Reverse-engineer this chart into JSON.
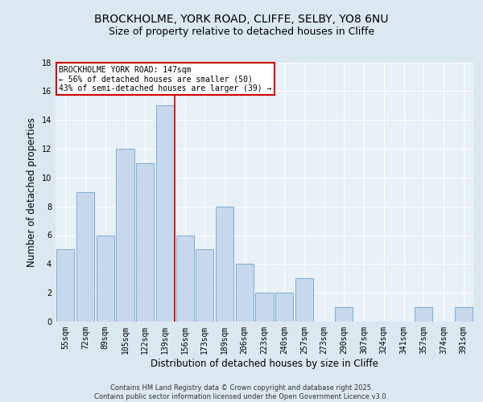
{
  "title1": "BROCKHOLME, YORK ROAD, CLIFFE, SELBY, YO8 6NU",
  "title2": "Size of property relative to detached houses in Cliffe",
  "xlabel": "Distribution of detached houses by size in Cliffe",
  "ylabel": "Number of detached properties",
  "categories": [
    "55sqm",
    "72sqm",
    "89sqm",
    "105sqm",
    "122sqm",
    "139sqm",
    "156sqm",
    "173sqm",
    "189sqm",
    "206sqm",
    "223sqm",
    "240sqm",
    "257sqm",
    "273sqm",
    "290sqm",
    "307sqm",
    "324sqm",
    "341sqm",
    "357sqm",
    "374sqm",
    "391sqm"
  ],
  "values": [
    5,
    9,
    6,
    12,
    11,
    15,
    6,
    5,
    8,
    4,
    2,
    2,
    3,
    0,
    1,
    0,
    0,
    0,
    1,
    0,
    1
  ],
  "bar_color": "#c8d8ec",
  "bar_edge_color": "#7aadd4",
  "red_line_index": 5.5,
  "annotation_text": "BROCKHOLME YORK ROAD: 147sqm\n← 56% of detached houses are smaller (50)\n43% of semi-detached houses are larger (39) →",
  "annotation_box_color": "#ffffff",
  "annotation_box_edge": "#cc0000",
  "red_line_color": "#cc0000",
  "ylim": [
    0,
    18
  ],
  "yticks": [
    0,
    2,
    4,
    6,
    8,
    10,
    12,
    14,
    16,
    18
  ],
  "bg_color": "#dce8f0",
  "plot_bg_color": "#e8f0f8",
  "grid_color": "#ffffff",
  "footer": "Contains HM Land Registry data © Crown copyright and database right 2025.\nContains public sector information licensed under the Open Government Licence v3.0.",
  "title_fontsize": 10,
  "subtitle_fontsize": 9,
  "tick_fontsize": 7,
  "label_fontsize": 8.5,
  "ann_fontsize": 7,
  "footer_fontsize": 6
}
